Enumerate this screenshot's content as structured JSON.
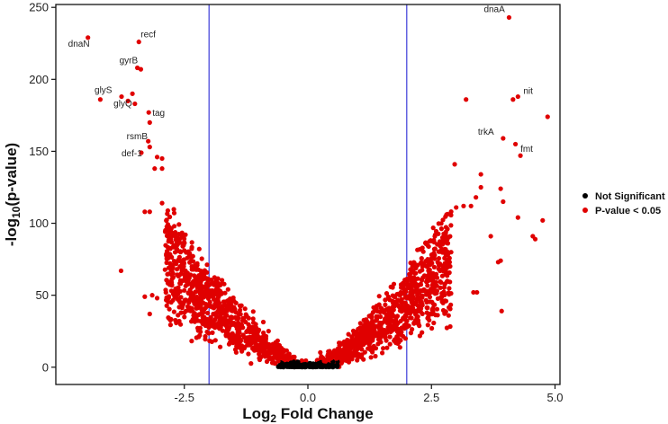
{
  "chart_data": {
    "type": "scatter",
    "title": "",
    "xlabel": {
      "prefix": "Log",
      "sub": "2",
      "suffix": " Fold Change"
    },
    "ylabel": {
      "prefix": "-log",
      "sub": "10",
      "suffix": "(p-value)"
    },
    "xlim": [
      -5.1,
      5.1
    ],
    "ylim": [
      -12,
      252
    ],
    "x_ticks": [
      -2.5,
      0,
      2.5,
      5
    ],
    "x_tick_labels": [
      "-2.5",
      "0.0",
      "2.5",
      "5.0"
    ],
    "y_ticks": [
      0,
      50,
      100,
      150,
      200,
      250
    ],
    "y_tick_labels": [
      "0",
      "50",
      "100",
      "150",
      "200",
      "250"
    ],
    "thresholds_x": [
      -2,
      2
    ],
    "threshold_color": "#3b3bd9",
    "grid": false,
    "legend": {
      "placement": "right",
      "entries": [
        {
          "label": "Not Significant",
          "color": "#000000"
        },
        {
          "label": "P-value < 0.05",
          "color": "#e00000"
        }
      ]
    },
    "labeled_points": [
      {
        "label": "dnaA",
        "x": 4.07,
        "y": 243
      },
      {
        "label": "dnaN",
        "x": -4.45,
        "y": 229
      },
      {
        "label": "recf",
        "x": -3.42,
        "y": 226
      },
      {
        "label": "gyrB",
        "x": -3.45,
        "y": 208
      },
      {
        "label": "glyS",
        "x": -3.77,
        "y": 188
      },
      {
        "label": "glyQ",
        "x": -3.64,
        "y": 185
      },
      {
        "label": "nit",
        "x": 4.25,
        "y": 188
      },
      {
        "label": "tag",
        "x": -3.22,
        "y": 177
      },
      {
        "label": "rsmB",
        "x": -3.23,
        "y": 157
      },
      {
        "label": "def-1",
        "x": -3.37,
        "y": 149
      },
      {
        "label": "trkA",
        "x": 3.95,
        "y": 159
      },
      {
        "label": "fmt",
        "x": 4.3,
        "y": 147
      }
    ],
    "significant_outliers": [
      {
        "x": -4.2,
        "y": 186
      },
      {
        "x": -3.55,
        "y": 190
      },
      {
        "x": -3.5,
        "y": 183
      },
      {
        "x": -3.38,
        "y": 207
      },
      {
        "x": -3.2,
        "y": 170
      },
      {
        "x": -3.2,
        "y": 153
      },
      {
        "x": -3.05,
        "y": 146
      },
      {
        "x": -2.95,
        "y": 145
      },
      {
        "x": -2.95,
        "y": 138
      },
      {
        "x": -3.1,
        "y": 138
      },
      {
        "x": -2.95,
        "y": 114
      },
      {
        "x": -3.3,
        "y": 108
      },
      {
        "x": -3.2,
        "y": 108
      },
      {
        "x": -3.78,
        "y": 67
      },
      {
        "x": -3.3,
        "y": 49
      },
      {
        "x": -3.2,
        "y": 37
      },
      {
        "x": -3.15,
        "y": 50
      },
      {
        "x": -3.05,
        "y": 48
      },
      {
        "x": 3.2,
        "y": 186
      },
      {
        "x": 4.15,
        "y": 186
      },
      {
        "x": 4.85,
        "y": 174
      },
      {
        "x": 4.2,
        "y": 155
      },
      {
        "x": 2.97,
        "y": 141
      },
      {
        "x": 3.5,
        "y": 134
      },
      {
        "x": 3.5,
        "y": 125
      },
      {
        "x": 3.9,
        "y": 124
      },
      {
        "x": 3.4,
        "y": 118
      },
      {
        "x": 3.3,
        "y": 112
      },
      {
        "x": 3.0,
        "y": 111
      },
      {
        "x": 3.15,
        "y": 112
      },
      {
        "x": 3.95,
        "y": 115
      },
      {
        "x": 4.25,
        "y": 104
      },
      {
        "x": 4.75,
        "y": 102
      },
      {
        "x": 4.55,
        "y": 91
      },
      {
        "x": 4.6,
        "y": 89
      },
      {
        "x": 3.7,
        "y": 91
      },
      {
        "x": 3.9,
        "y": 74
      },
      {
        "x": 3.85,
        "y": 73
      },
      {
        "x": 3.92,
        "y": 39
      },
      {
        "x": 3.42,
        "y": 52
      },
      {
        "x": 3.35,
        "y": 52
      }
    ],
    "volcano_model": {
      "coefficient": 17,
      "exponent": 1.4,
      "x_range": [
        -2.9,
        2.9
      ],
      "point_count": 1900
    },
    "nonsignificant_range": [
      -0.6,
      0.6
    ]
  }
}
